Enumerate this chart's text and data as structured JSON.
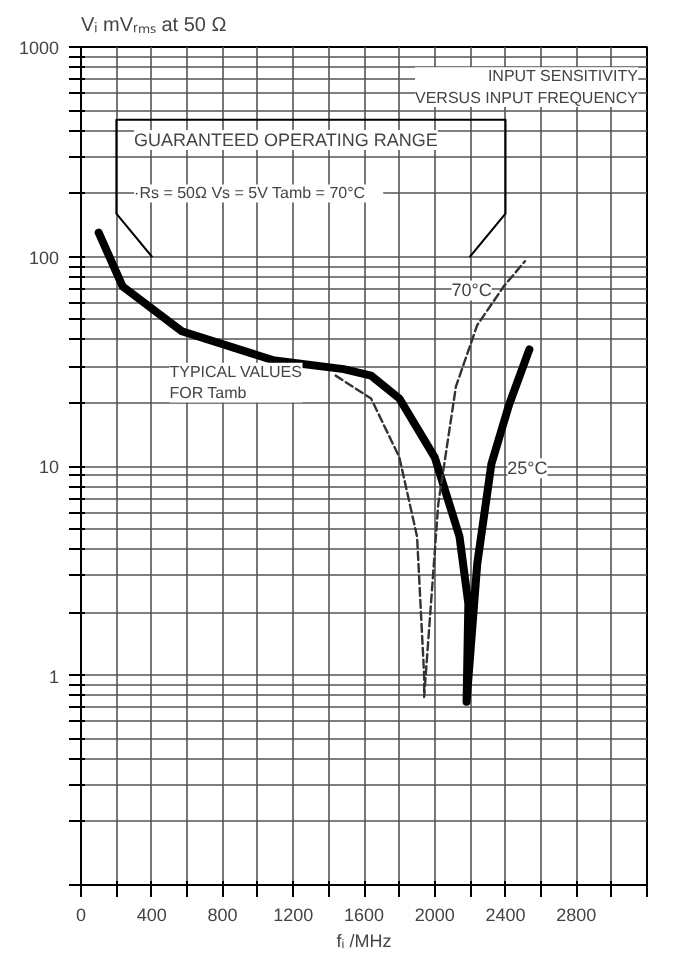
{
  "chart_data": {
    "type": "line",
    "title": "INPUT SENSITIVITY\nVERSUS INPUT FREQUENCY",
    "ylabel": "Vᵢ mVᵣₘₛ at 50 Ω",
    "xlabel": "fᵢ /MHz",
    "annotations": [
      "GUARANTEED OPERATING RANGE",
      "·Rs = 50Ω   Vs = 5V   Tamb = 70°C",
      "TYPICAL VALUES\nFOR Tamb"
    ],
    "log": "y",
    "grid": true,
    "xlim": [
      0,
      3200
    ],
    "ylim": [
      0.1,
      1000
    ],
    "xticks": [
      0,
      {
        "value": 200,
        "label": null
      },
      400,
      {
        "value": 600,
        "label": null
      },
      800,
      {
        "value": 1000,
        "label": null
      },
      1200,
      {
        "value": 1400,
        "label": null
      },
      1600,
      {
        "value": 1800,
        "label": null
      },
      2000,
      {
        "value": 2200,
        "label": null
      },
      2400,
      {
        "value": 2600,
        "label": null
      },
      2800,
      {
        "value": 3000,
        "label": null
      },
      {
        "value": 3200,
        "label": null
      }
    ],
    "yticks": [
      {
        "value": 0.1,
        "label": null
      },
      {
        "value": 0.2,
        "label": null
      },
      {
        "value": 0.3,
        "label": null
      },
      {
        "value": 0.4,
        "label": null
      },
      {
        "value": 0.5,
        "label": null
      },
      {
        "value": 0.6,
        "label": null
      },
      {
        "value": 0.7,
        "label": null
      },
      {
        "value": 0.8,
        "label": null
      },
      {
        "value": 0.9,
        "label": null
      },
      1,
      {
        "value": 2,
        "label": null
      },
      {
        "value": 3,
        "label": null
      },
      {
        "value": 4,
        "label": null
      },
      {
        "value": 5,
        "label": null
      },
      {
        "value": 6,
        "label": null
      },
      {
        "value": 7,
        "label": null
      },
      {
        "value": 8,
        "label": null
      },
      {
        "value": 9,
        "label": null
      },
      10,
      {
        "value": 20,
        "label": null
      },
      {
        "value": 30,
        "label": null
      },
      {
        "value": 40,
        "label": null
      },
      {
        "value": 50,
        "label": null
      },
      {
        "value": 60,
        "label": null
      },
      {
        "value": 70,
        "label": null
      },
      {
        "value": 80,
        "label": null
      },
      {
        "value": 90,
        "label": null
      },
      100,
      {
        "value": 200,
        "label": null
      },
      {
        "value": 300,
        "label": null
      },
      {
        "value": 400,
        "label": null
      },
      {
        "value": 500,
        "label": null
      },
      {
        "value": 600,
        "label": null
      },
      {
        "value": 700,
        "label": null
      },
      {
        "value": 800,
        "label": null
      },
      {
        "value": 900,
        "label": null
      },
      1000
    ],
    "series": [
      {
        "name": "25°C",
        "color": "#000000",
        "line_style": "solid",
        "x": [
          100,
          235,
          570,
          1085,
          1485,
          1640,
          1800,
          2000,
          2140,
          2190,
          2180,
          2240,
          2320,
          2420,
          2535
        ],
        "values": [
          130,
          72,
          44,
          32,
          29,
          27,
          21,
          11,
          4.6,
          2.2,
          0.75,
          3.4,
          10.2,
          19.6,
          36
        ]
      },
      {
        "name": "70°C",
        "color": "#333333",
        "line_style": "dashed",
        "x": [
          1440,
          1640,
          1800,
          1900,
          1940,
          1940,
          2020,
          2120,
          2240,
          2390,
          2510
        ],
        "values": [
          27,
          21,
          11,
          4.6,
          1.0,
          0.79,
          6.6,
          24,
          47,
          72,
          95
        ]
      },
      {
        "color": "#000000",
        "line_style": "solid",
        "x": [
          400,
          200,
          200,
          2400,
          2400,
          2200
        ],
        "values": [
          100,
          160,
          450,
          450,
          160,
          100
        ]
      }
    ]
  }
}
